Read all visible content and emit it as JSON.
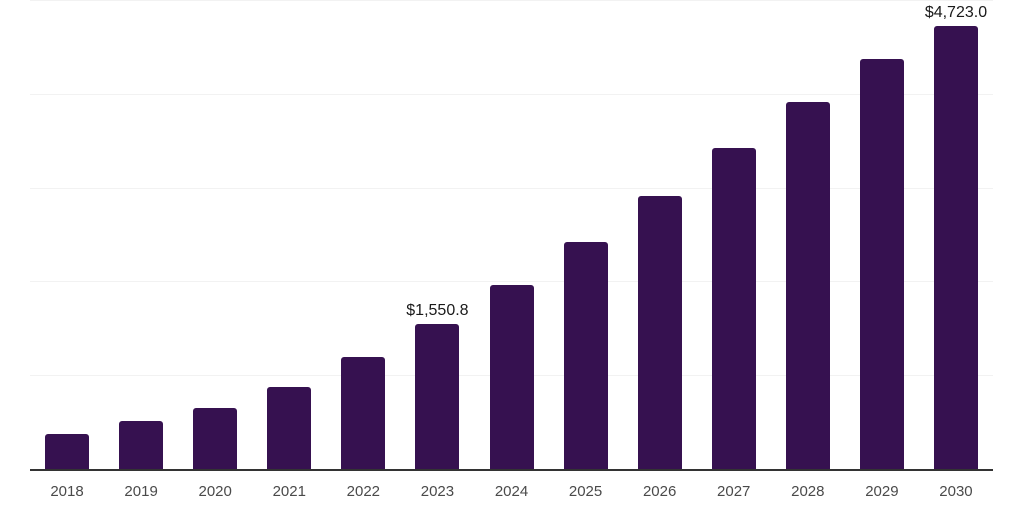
{
  "chart_data": {
    "type": "bar",
    "title": "",
    "xlabel": "",
    "ylabel": "",
    "categories": [
      "2018",
      "2019",
      "2020",
      "2021",
      "2022",
      "2023",
      "2024",
      "2025",
      "2026",
      "2027",
      "2028",
      "2029",
      "2030"
    ],
    "values": [
      375,
      515,
      650,
      870,
      1190,
      1550.8,
      1965,
      2425,
      2915,
      3425,
      3915,
      4370,
      4723
    ],
    "annotations": [
      {
        "category": "2023",
        "text": "$1,550.8"
      },
      {
        "category": "2030",
        "text": "$4,723.0"
      }
    ],
    "ylim": [
      0,
      5000
    ],
    "gridline_interval": 1000,
    "grid": "horizontal-only",
    "y_axis_labels_visible": false,
    "legend": "none",
    "colors": {
      "bar": "#361150",
      "axis_line": "#333333",
      "gridline": "#f2f2f2",
      "tick_label": "#4a4a4a",
      "value_label": "#1a1a1a",
      "background": "#ffffff"
    }
  }
}
